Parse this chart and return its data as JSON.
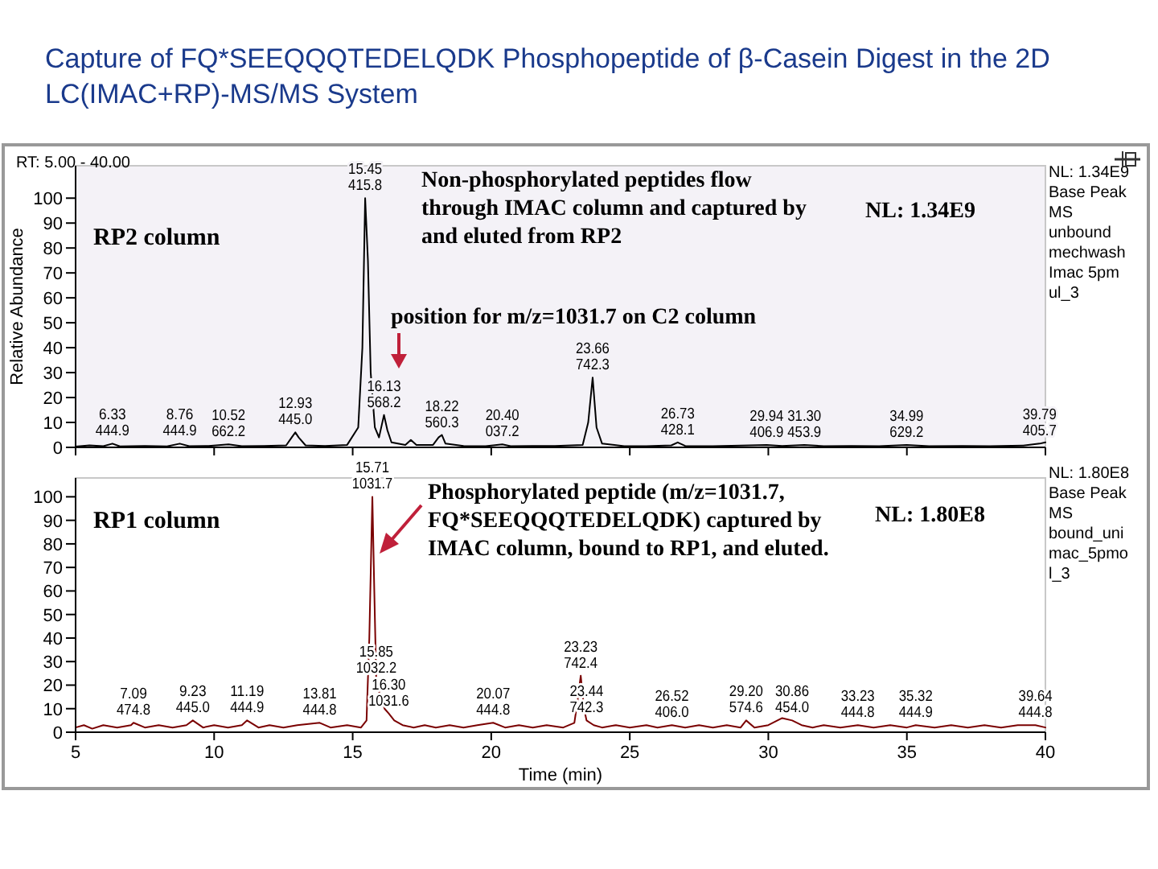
{
  "chart_data": [
    {
      "type": "line",
      "title": "Capture of FQ*SEEQQQTEDELQDK Phosphopeptide of β-Casein Digest in the 2D LC(IMAC+RP)-MS/MS System",
      "ylabel": "Relative Abundance",
      "xlim": [
        5,
        40
      ],
      "ylim": [
        0,
        113
      ],
      "xticks": [
        5,
        10,
        15,
        20,
        25,
        30,
        35,
        40
      ],
      "yticks": [
        0,
        10,
        20,
        30,
        40,
        50,
        60,
        70,
        80,
        90,
        100
      ],
      "tick_labels": "y",
      "grid": false,
      "series": [
        {
          "color": "#000000",
          "x": [
            5,
            5.5,
            6,
            6.33,
            6.6,
            7.5,
            8.3,
            8.76,
            9.1,
            9.8,
            10.52,
            11,
            11.8,
            12.6,
            12.8,
            12.93,
            13.05,
            13.3,
            14,
            14.8,
            15.2,
            15.35,
            15.45,
            15.55,
            15.65,
            15.8,
            15.95,
            16.05,
            16.13,
            16.25,
            16.4,
            16.9,
            17.1,
            17.3,
            17.9,
            18.1,
            18.22,
            18.35,
            19,
            19.8,
            20.4,
            20.7,
            21.5,
            22.3,
            23.3,
            23.5,
            23.66,
            23.8,
            24,
            24.8,
            25.6,
            26.5,
            26.73,
            27,
            28,
            29,
            29.94,
            30.5,
            31.3,
            32,
            33,
            34,
            34.99,
            35.8,
            37,
            38,
            39.2,
            39.79,
            40
          ],
          "values": [
            0.3,
            0.8,
            0.5,
            1.5,
            0.4,
            0.6,
            0.4,
            1.5,
            0.5,
            0.6,
            1.2,
            0.5,
            0.6,
            0.8,
            4,
            6,
            4,
            0.8,
            0.6,
            1,
            8,
            40,
            100,
            75,
            30,
            8,
            4,
            9,
            13,
            7,
            2,
            1,
            3,
            1,
            1,
            4,
            5,
            1.5,
            0.6,
            0.5,
            1.2,
            0.5,
            0.6,
            0.6,
            1,
            10,
            28,
            8,
            1.5,
            0.5,
            0.5,
            0.8,
            2,
            0.6,
            0.5,
            0.7,
            1,
            0.6,
            1,
            0.5,
            0.6,
            0.5,
            1,
            0.5,
            0.6,
            0.5,
            0.7,
            1.5,
            2
          ]
        }
      ],
      "annotations": [
        {
          "text": "6.33 444.9",
          "x": 6.33,
          "y": 1.5
        },
        {
          "text": "8.76 444.9",
          "x": 8.76,
          "y": 1.5
        },
        {
          "text": "10.52 662.2",
          "x": 10.52,
          "y": 1.2
        },
        {
          "text": "12.93 445.0",
          "x": 12.93,
          "y": 6
        },
        {
          "text": "15.45 415.8",
          "x": 15.45,
          "y": 100
        },
        {
          "text": "16.13 568.2",
          "x": 16.13,
          "y": 13
        },
        {
          "text": "18.22 560.3",
          "x": 18.22,
          "y": 5
        },
        {
          "text": "20.40 037.2",
          "x": 20.4,
          "y": 1.2
        },
        {
          "text": "23.66 742.3",
          "x": 23.66,
          "y": 28
        },
        {
          "text": "26.73 428.1",
          "x": 26.73,
          "y": 2
        },
        {
          "text": "29.94 406.9",
          "x": 29.94,
          "y": 1
        },
        {
          "text": "31.30 453.9",
          "x": 31.3,
          "y": 1
        },
        {
          "text": "34.99 629.2",
          "x": 34.99,
          "y": 1
        },
        {
          "text": "39.79 405.7",
          "x": 39.79,
          "y": 1.5
        },
        "RT: 5.00 - 40.00",
        "RP2 column",
        "Non-phosphorylated peptides flow through IMAC column and captured by and eluted from RP2",
        "NL: 1.34E9",
        "position for m/z=1031.7 on C2 column",
        "NL: 1.34E9 Base Peak MS unbound mechwash Imac 5pm ul_3"
      ]
    },
    {
      "type": "line",
      "xlabel": "Time (min)",
      "xlim": [
        5,
        40
      ],
      "ylim": [
        0,
        108
      ],
      "xticks": [
        5,
        10,
        15,
        20,
        25,
        30,
        35,
        40
      ],
      "yticks": [
        0,
        10,
        20,
        30,
        40,
        50,
        60,
        70,
        80,
        90,
        100
      ],
      "grid": false,
      "series": [
        {
          "color": "#7a0000",
          "x": [
            5,
            5.3,
            5.6,
            6,
            6.5,
            7,
            7.09,
            7.5,
            8,
            8.5,
            9,
            9.23,
            9.6,
            10,
            10.5,
            11,
            11.19,
            11.6,
            12,
            12.5,
            13,
            13.81,
            14.2,
            14.8,
            15.3,
            15.5,
            15.6,
            15.71,
            15.78,
            15.85,
            16,
            16.15,
            16.3,
            16.5,
            16.8,
            17.2,
            17.6,
            18,
            18.5,
            19,
            19.5,
            20.07,
            20.5,
            21,
            21.5,
            22,
            22.6,
            23,
            23.1,
            23.23,
            23.35,
            23.44,
            23.7,
            24,
            24.5,
            25,
            25.6,
            26,
            26.52,
            27,
            27.5,
            28,
            28.5,
            29,
            29.2,
            29.5,
            30,
            30.5,
            30.86,
            31.2,
            31.6,
            32,
            32.6,
            33.23,
            33.8,
            34.4,
            35,
            35.32,
            36,
            36.6,
            37.2,
            37.8,
            38.4,
            39,
            39.64,
            40
          ],
          "values": [
            2,
            3,
            1.5,
            3,
            2,
            3,
            4,
            2,
            3,
            2,
            3,
            5,
            2,
            3,
            2,
            3,
            5,
            2,
            3,
            2,
            3,
            4,
            2,
            3,
            2,
            5,
            40,
            100,
            60,
            22,
            15,
            10,
            8,
            5,
            3,
            2,
            3,
            2,
            3,
            2,
            3,
            4,
            2,
            3,
            2,
            3,
            2,
            4,
            12,
            24,
            10,
            5,
            3,
            2,
            3,
            2,
            3,
            2,
            3,
            2,
            3,
            2,
            3,
            2,
            5,
            2,
            3,
            6,
            5,
            3,
            2,
            3,
            2,
            3,
            2,
            3,
            2,
            3,
            2,
            3,
            2,
            3,
            2,
            3,
            3,
            2
          ]
        }
      ],
      "annotations": [
        {
          "text": "7.09 474.8",
          "x": 7.09,
          "y": 4
        },
        {
          "text": "9.23 445.0",
          "x": 9.23,
          "y": 5
        },
        {
          "text": "11.19 444.9",
          "x": 11.19,
          "y": 5
        },
        {
          "text": "13.81 444.8",
          "x": 13.81,
          "y": 4
        },
        {
          "text": "15.71 1031.7",
          "x": 15.71,
          "y": 100
        },
        {
          "text": "15.85 1032.2",
          "x": 15.85,
          "y": 22
        },
        {
          "text": "16.30 1031.6",
          "x": 16.3,
          "y": 8
        },
        {
          "text": "20.07 444.8",
          "x": 20.07,
          "y": 4
        },
        {
          "text": "23.23 742.4",
          "x": 23.23,
          "y": 24
        },
        {
          "text": "23.44 742.3",
          "x": 23.44,
          "y": 5
        },
        {
          "text": "26.52 406.0",
          "x": 26.52,
          "y": 3
        },
        {
          "text": "29.20 574.6",
          "x": 29.2,
          "y": 5
        },
        {
          "text": "30.86 454.0",
          "x": 30.86,
          "y": 5
        },
        {
          "text": "33.23 444.8",
          "x": 33.23,
          "y": 3
        },
        {
          "text": "35.32 444.9",
          "x": 35.32,
          "y": 3
        },
        {
          "text": "39.64 444.8",
          "x": 39.64,
          "y": 3
        },
        "RP1 column",
        "Phosphorylated peptide (m/z=1031.7, FQ*SEEQQQTEDELQDK) captured by IMAC column, bound to RP1, and eluted.",
        "NL: 1.80E8",
        "NL: 1.80E8 Base Peak MS bound_uni mac_5pmo l_3"
      ]
    }
  ]
}
